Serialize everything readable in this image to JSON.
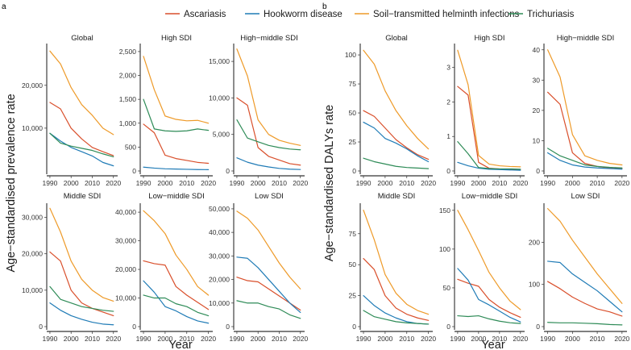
{
  "figure": {
    "panel_labels": [
      "a",
      "b"
    ]
  },
  "legend": {
    "items": [
      {
        "label": "Ascariasis",
        "color": "#d94f2b"
      },
      {
        "label": "Hookworm disease",
        "color": "#1f7bb6"
      },
      {
        "label": "Soil−transmitted helminth infections",
        "color": "#ee9a28"
      },
      {
        "label": "Trichuriasis",
        "color": "#2e8b57"
      }
    ]
  },
  "chart_data": [
    {
      "type": "line",
      "panel": "a",
      "ylabel": "Age−standardised prevalence rate",
      "xlabel": "Year",
      "x": [
        1990,
        1995,
        2000,
        2005,
        2010,
        2015,
        2020
      ],
      "x_ticks": [
        1990,
        2000,
        2010,
        2020
      ],
      "facets": [
        {
          "title": "Global",
          "ylim": [
            0,
            29000
          ],
          "y_ticks": [
            10000,
            20000
          ],
          "y_tick_labels": [
            "10,000",
            "20,000"
          ],
          "series": [
            {
              "name": "Ascariasis",
              "values": [
                16000,
                14500,
                10000,
                7500,
                5500,
                4500,
                3600
              ]
            },
            {
              "name": "Hookworm disease",
              "values": [
                8800,
                7000,
                5500,
                4500,
                3500,
                2000,
                1200
              ]
            },
            {
              "name": "Soil−transmitted helminth infections",
              "values": [
                28000,
                25000,
                19500,
                15500,
                13000,
                10000,
                8500
              ]
            },
            {
              "name": "Trichuriasis",
              "values": [
                8800,
                6500,
                5800,
                5300,
                4800,
                4000,
                3300
              ]
            }
          ]
        },
        {
          "title": "High SDI",
          "ylim": [
            0,
            2600
          ],
          "y_ticks": [
            0,
            500,
            1000,
            1500,
            2000,
            2500
          ],
          "y_tick_labels": [
            "0",
            "500",
            "1,000",
            "1,500",
            "2,000",
            "2,500"
          ],
          "series": [
            {
              "name": "Ascariasis",
              "values": [
                980,
                800,
                330,
                260,
                220,
                180,
                160
              ]
            },
            {
              "name": "Hookworm disease",
              "values": [
                80,
                60,
                45,
                40,
                35,
                30,
                28
              ]
            },
            {
              "name": "Soil−transmitted helminth infections",
              "values": [
                2400,
                1700,
                1150,
                1080,
                1050,
                1060,
                1000
              ]
            },
            {
              "name": "Trichuriasis",
              "values": [
                1500,
                880,
                840,
                830,
                840,
                880,
                850
              ]
            }
          ]
        },
        {
          "title": "High−middle SDI",
          "ylim": [
            0,
            17000
          ],
          "y_ticks": [
            0,
            5000,
            10000,
            15000
          ],
          "y_tick_labels": [
            "0",
            "5,000",
            "10,000",
            "15,000"
          ],
          "series": [
            {
              "name": "Ascariasis",
              "values": [
                10000,
                9000,
                3200,
                2000,
                1500,
                1000,
                800
              ]
            },
            {
              "name": "Hookworm disease",
              "values": [
                1800,
                1200,
                800,
                550,
                350,
                250,
                200
              ]
            },
            {
              "name": "Soil−transmitted helminth infections",
              "values": [
                16700,
                13000,
                7000,
                5000,
                4200,
                3800,
                3500
              ]
            },
            {
              "name": "Trichuriasis",
              "values": [
                7000,
                4500,
                4000,
                3500,
                3200,
                3000,
                2900
              ]
            }
          ]
        },
        {
          "title": "Middle SDI",
          "ylim": [
            0,
            33000
          ],
          "y_ticks": [
            0,
            10000,
            20000,
            30000
          ],
          "y_tick_labels": [
            "0",
            "10,000",
            "20,000",
            "30,000"
          ],
          "series": [
            {
              "name": "Ascariasis",
              "values": [
                20500,
                18000,
                10000,
                6500,
                5000,
                4000,
                3000
              ]
            },
            {
              "name": "Hookworm disease",
              "values": [
                6500,
                4500,
                3000,
                2000,
                1200,
                700,
                500
              ]
            },
            {
              "name": "Soil−transmitted helminth infections",
              "values": [
                32500,
                26000,
                18000,
                13000,
                10000,
                8000,
                7000
              ]
            },
            {
              "name": "Trichuriasis",
              "values": [
                11000,
                7500,
                6500,
                5500,
                5000,
                4500,
                4200
              ]
            }
          ]
        },
        {
          "title": "Low−middle SDI",
          "ylim": [
            0,
            42000
          ],
          "y_ticks": [
            0,
            10000,
            20000,
            30000,
            40000
          ],
          "y_tick_labels": [
            "0",
            "10,000",
            "20,000",
            "30,000",
            "40,000"
          ],
          "series": [
            {
              "name": "Ascariasis",
              "values": [
                23000,
                22000,
                21500,
                14000,
                11000,
                8500,
                6000
              ]
            },
            {
              "name": "Hookworm disease",
              "values": [
                16000,
                12000,
                7000,
                5500,
                3500,
                2000,
                1200
              ]
            },
            {
              "name": "Soil−transmitted helminth infections",
              "values": [
                40500,
                37000,
                32500,
                25000,
                20000,
                14000,
                11000
              ]
            },
            {
              "name": "Trichuriasis",
              "values": [
                11000,
                10000,
                10000,
                8000,
                7000,
                5000,
                3800
              ]
            }
          ]
        },
        {
          "title": "Low SDI",
          "ylim": [
            0,
            51000
          ],
          "y_ticks": [
            0,
            10000,
            20000,
            30000,
            40000,
            50000
          ],
          "y_tick_labels": [
            "0",
            "10,000",
            "20,000",
            "30,000",
            "40,000",
            "50,000"
          ],
          "series": [
            {
              "name": "Ascariasis",
              "values": [
                21000,
                19500,
                19000,
                16000,
                13000,
                10000,
                7000
              ]
            },
            {
              "name": "Hookworm disease",
              "values": [
                29500,
                29000,
                25000,
                20000,
                15000,
                10000,
                6000
              ]
            },
            {
              "name": "Soil−transmitted helminth infections",
              "values": [
                49000,
                46000,
                41000,
                34000,
                27000,
                21000,
                16000
              ]
            },
            {
              "name": "Trichuriasis",
              "values": [
                11000,
                10000,
                10000,
                8500,
                7500,
                5000,
                3500
              ]
            }
          ]
        }
      ]
    },
    {
      "type": "line",
      "panel": "b",
      "ylabel": "Age−standardised DALYs rate",
      "xlabel": "Year",
      "x": [
        1990,
        1995,
        2000,
        2005,
        2010,
        2015,
        2020
      ],
      "x_ticks": [
        1990,
        2000,
        2010,
        2020
      ],
      "facets": [
        {
          "title": "Global",
          "ylim": [
            0,
            107
          ],
          "y_ticks": [
            0,
            25,
            50,
            75,
            100
          ],
          "y_tick_labels": [
            "0",
            "25",
            "50",
            "75",
            "100"
          ],
          "series": [
            {
              "name": "Ascariasis",
              "values": [
                52,
                47,
                37,
                27,
                20,
                14,
                10
              ]
            },
            {
              "name": "Hookworm disease",
              "values": [
                42,
                37,
                28,
                24,
                19,
                13,
                8
              ]
            },
            {
              "name": "Soil−transmitted helminth infections",
              "values": [
                104,
                92,
                69,
                52,
                39,
                28,
                19
              ]
            },
            {
              "name": "Trichuriasis",
              "values": [
                11,
                8,
                6,
                4,
                3,
                2.5,
                2
              ]
            }
          ]
        },
        {
          "title": "High SDI",
          "ylim": [
            0,
            3.6
          ],
          "y_ticks": [
            0,
            1,
            2,
            3
          ],
          "y_tick_labels": [
            "0",
            "1",
            "2",
            "3"
          ],
          "series": [
            {
              "name": "Ascariasis",
              "values": [
                2.45,
                2.2,
                0.25,
                0.08,
                0.06,
                0.05,
                0.04
              ]
            },
            {
              "name": "Hookworm disease",
              "values": [
                0.25,
                0.15,
                0.08,
                0.05,
                0.04,
                0.03,
                0.02
              ]
            },
            {
              "name": "Soil−transmitted helminth infections",
              "values": [
                3.5,
                2.5,
                0.45,
                0.2,
                0.15,
                0.13,
                0.12
              ]
            },
            {
              "name": "Trichuriasis",
              "values": [
                0.85,
                0.5,
                0.1,
                0.07,
                0.06,
                0.06,
                0.05
              ]
            }
          ]
        },
        {
          "title": "High−middle SDI",
          "ylim": [
            0,
            41
          ],
          "y_ticks": [
            0,
            10,
            20,
            30,
            40
          ],
          "y_tick_labels": [
            "0",
            "10",
            "20",
            "30",
            "40"
          ],
          "series": [
            {
              "name": "Ascariasis",
              "values": [
                26,
                22,
                6,
                2.5,
                1.5,
                1,
                0.8
              ]
            },
            {
              "name": "Hookworm disease",
              "values": [
                6,
                3.5,
                2,
                1.3,
                1,
                0.8,
                0.6
              ]
            },
            {
              "name": "Soil−transmitted helminth infections",
              "values": [
                40,
                31,
                12,
                5,
                3.5,
                2.5,
                2
              ]
            },
            {
              "name": "Trichuriasis",
              "values": [
                7.5,
                5,
                3.5,
                2,
                1.5,
                1.2,
                1
              ]
            }
          ]
        },
        {
          "title": "Middle SDI",
          "ylim": [
            0,
            97
          ],
          "y_ticks": [
            0,
            25,
            50,
            75
          ],
          "y_tick_labels": [
            "0",
            "25",
            "50",
            "75"
          ],
          "series": [
            {
              "name": "Ascariasis",
              "values": [
                55,
                46,
                25,
                15,
                10,
                7,
                5
              ]
            },
            {
              "name": "Hookworm disease",
              "values": [
                25,
                17,
                11,
                7,
                4,
                2.5,
                2
              ]
            },
            {
              "name": "Soil−transmitted helminth infections",
              "values": [
                94,
                70,
                42,
                27,
                18,
                13,
                10
              ]
            },
            {
              "name": "Trichuriasis",
              "values": [
                13,
                8,
                6,
                4,
                3,
                2.5,
                2
              ]
            }
          ]
        },
        {
          "title": "Low−middle SDI",
          "ylim": [
            0,
            155
          ],
          "y_ticks": [
            0,
            50,
            100,
            150
          ],
          "y_tick_labels": [
            "0",
            "50",
            "100",
            "150"
          ],
          "series": [
            {
              "name": "Ascariasis",
              "values": [
                61,
                56,
                52,
                35,
                25,
                18,
                12
              ]
            },
            {
              "name": "Hookworm disease",
              "values": [
                75,
                60,
                35,
                28,
                20,
                12,
                6
              ]
            },
            {
              "name": "Soil−transmitted helminth infections",
              "values": [
                150,
                125,
                98,
                70,
                50,
                33,
                22
              ]
            },
            {
              "name": "Trichuriasis",
              "values": [
                14,
                13,
                14,
                10,
                7,
                5,
                4
              ]
            }
          ]
        },
        {
          "title": "Low SDI",
          "ylim": [
            0,
            285
          ],
          "y_ticks": [
            0,
            100,
            200
          ],
          "y_tick_labels": [
            "0",
            "100",
            "200"
          ],
          "series": [
            {
              "name": "Ascariasis",
              "values": [
                107,
                90,
                70,
                55,
                42,
                35,
                25
              ]
            },
            {
              "name": "Hookworm disease",
              "values": [
                155,
                152,
                125,
                105,
                85,
                60,
                35
              ]
            },
            {
              "name": "Soil−transmitted helminth infections",
              "values": [
                280,
                250,
                205,
                165,
                125,
                90,
                55
              ]
            },
            {
              "name": "Trichuriasis",
              "values": [
                10,
                9,
                9,
                8,
                7,
                5,
                4
              ]
            }
          ]
        }
      ]
    }
  ]
}
